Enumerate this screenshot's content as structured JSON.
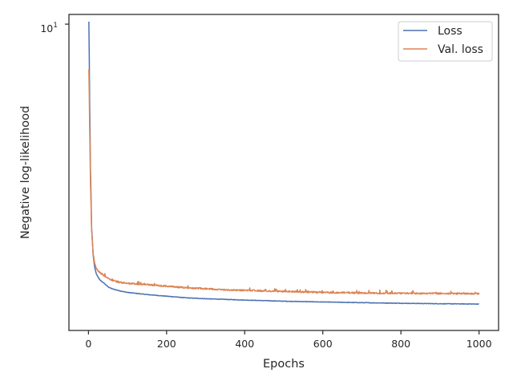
{
  "chart_data": {
    "type": "line",
    "xlabel": "Epochs",
    "ylabel": "Negative log-likelihood",
    "xlim": [
      -50,
      1050
    ],
    "ylim": [
      0.88,
      10.8
    ],
    "y_scale": "log",
    "x_ticks": [
      0,
      200,
      400,
      600,
      800,
      1000
    ],
    "x_tick_labels": [
      "0",
      "200",
      "400",
      "600",
      "800",
      "1000"
    ],
    "y_tick_label_base": "10",
    "y_tick_label_exp": "1",
    "grid": false,
    "legend_position": "top-right",
    "series": [
      {
        "name": "Loss",
        "color": "#4c72b0",
        "x": [
          1,
          3,
          5,
          8,
          12,
          16,
          20,
          25,
          30,
          40,
          50,
          60,
          80,
          100,
          150,
          200,
          250,
          300,
          350,
          400,
          500,
          600,
          700,
          800,
          900,
          1000
        ],
        "y": [
          10.2,
          5.5,
          3.2,
          2.0,
          1.6,
          1.45,
          1.38,
          1.34,
          1.31,
          1.28,
          1.245,
          1.225,
          1.205,
          1.19,
          1.17,
          1.155,
          1.14,
          1.132,
          1.126,
          1.12,
          1.11,
          1.103,
          1.097,
          1.092,
          1.088,
          1.085
        ]
      },
      {
        "name": "Val. loss",
        "color": "#dd8452",
        "x": [
          1,
          3,
          5,
          8,
          12,
          16,
          20,
          25,
          30,
          40,
          50,
          60,
          80,
          100,
          150,
          200,
          250,
          300,
          350,
          400,
          500,
          600,
          700,
          800,
          900,
          1000
        ],
        "y": [
          7.0,
          4.5,
          2.9,
          1.95,
          1.62,
          1.5,
          1.44,
          1.41,
          1.39,
          1.36,
          1.33,
          1.31,
          1.29,
          1.28,
          1.265,
          1.25,
          1.235,
          1.225,
          1.215,
          1.21,
          1.2,
          1.19,
          1.185,
          1.182,
          1.18,
          1.178
        ]
      }
    ]
  }
}
